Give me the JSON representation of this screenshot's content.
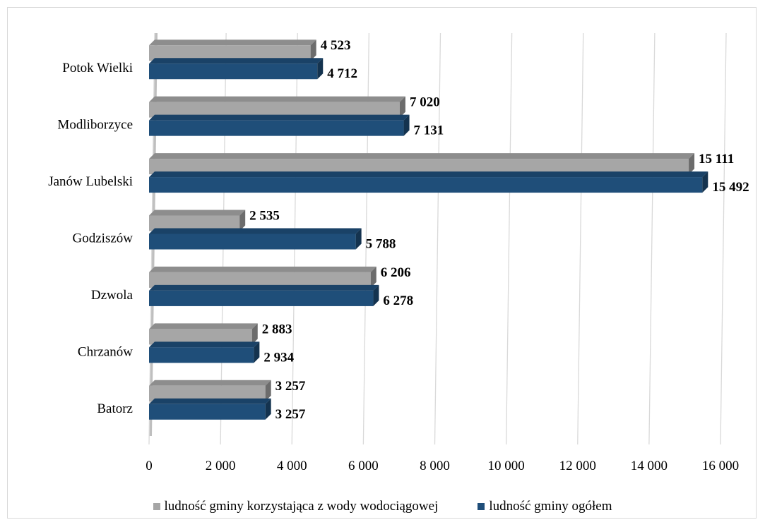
{
  "chart_data": {
    "type": "bar",
    "orientation": "horizontal",
    "style": "3d",
    "categories": [
      "Batorz",
      "Chrzanów",
      "Dzwola",
      "Godziszów",
      "Janów Lubelski",
      "Modliborzyce",
      "Potok Wielki"
    ],
    "series": [
      {
        "name": "ludność gminy korzystająca z wody wodociągowej",
        "color": "#a6a6a6",
        "values": [
          3257,
          2883,
          6206,
          2535,
          15111,
          7020,
          4523
        ],
        "labels": [
          "3 257",
          "2 883",
          "6 206",
          "2 535",
          "15 111",
          "7 020",
          "4 523"
        ]
      },
      {
        "name": "ludność gminy ogółem",
        "color": "#1f4e79",
        "values": [
          3257,
          2934,
          6278,
          5788,
          15492,
          7131,
          4712
        ],
        "labels": [
          "3 257",
          "2 934",
          "6 278",
          "5 788",
          "15 492",
          "7 131",
          "4 712"
        ]
      }
    ],
    "xlim": [
      0,
      16000
    ],
    "x_ticks": [
      0,
      2000,
      4000,
      6000,
      8000,
      10000,
      12000,
      14000,
      16000
    ],
    "x_tick_labels": [
      "0",
      "2 000",
      "4 000",
      "6 000",
      "8 000",
      "10 000",
      "12 000",
      "14 000",
      "16 000"
    ],
    "grid": true,
    "legend_position": "bottom"
  }
}
